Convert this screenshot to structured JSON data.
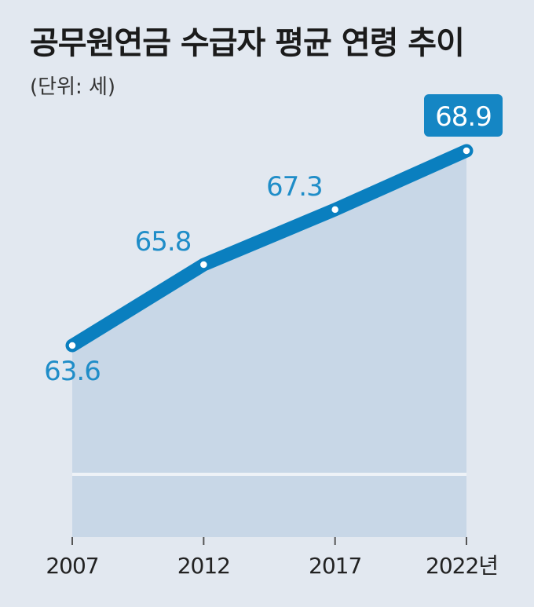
{
  "chart_data": {
    "type": "area",
    "title": "공무원연금 수급자 평균 연령 추이",
    "subtitle": "(단위: 세)",
    "x": [
      "2007",
      "2012",
      "2017",
      "2022"
    ],
    "values": [
      63.6,
      65.8,
      67.3,
      68.9
    ],
    "tick_labels": [
      "2007",
      "2012",
      "2017",
      "2022년"
    ],
    "value_labels": [
      "63.6",
      "65.8",
      "67.3",
      "68.9"
    ],
    "highlight_index": 3,
    "ylim": [
      60.0,
      70.0
    ],
    "grid": false,
    "legend": "none",
    "colors": {
      "background": "#e2e8f0",
      "area": "#c8d7e7",
      "line": "#0a7fbf",
      "label": "#1f8dc8",
      "badge": "#1586c4",
      "badge_text": "#ffffff",
      "divider": "#eef2f7",
      "tick_text": "#222222",
      "axis": "#555555"
    }
  }
}
